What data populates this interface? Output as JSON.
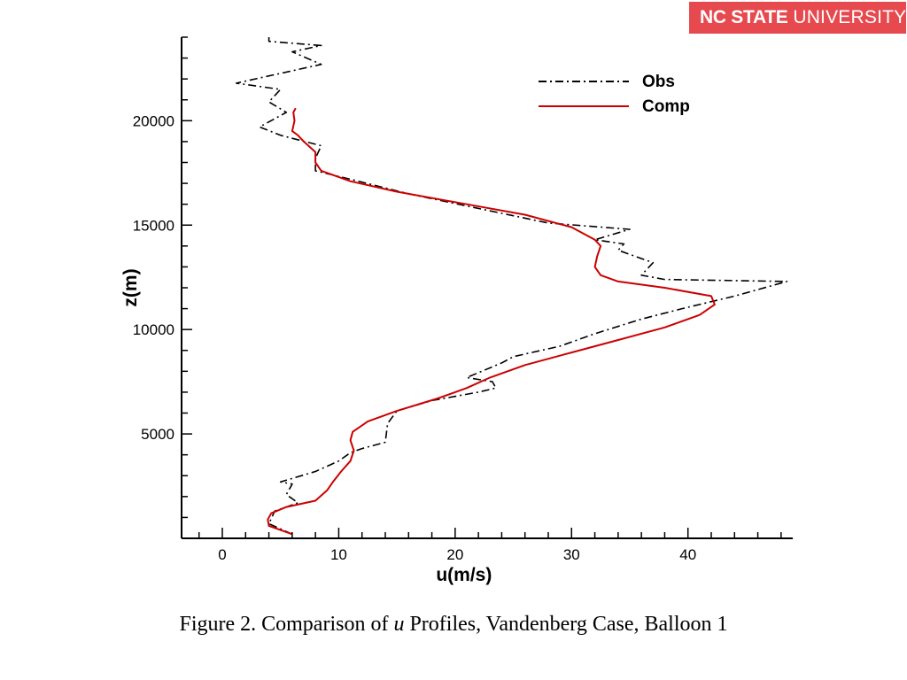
{
  "logo": {
    "bold_text": "NC STATE",
    "light_text": "UNIVERSITY",
    "color": "#e64a4f"
  },
  "caption": {
    "prefix": "Figure 2.  Comparison of ",
    "variable": "u",
    "suffix": " Profiles, Vandenberg Case, Balloon 1"
  },
  "chart_data": {
    "type": "line",
    "xlabel": "u(m/s)",
    "ylabel": "z(m)",
    "xlim": [
      -3.5,
      49
    ],
    "ylim": [
      0,
      24000
    ],
    "x_ticks": [
      0,
      10,
      20,
      30,
      40
    ],
    "y_ticks": [
      5000,
      10000,
      15000,
      20000
    ],
    "legend_position": "top-right",
    "series": [
      {
        "name": "Obs",
        "style": "dash-dot",
        "color": "#000000",
        "points": [
          [
            6,
            200
          ],
          [
            4,
            700
          ],
          [
            4.5,
            1300
          ],
          [
            6.5,
            1700
          ],
          [
            5.5,
            2100
          ],
          [
            6,
            2600
          ],
          [
            5,
            2700
          ],
          [
            8,
            3200
          ],
          [
            10,
            3700
          ],
          [
            11,
            4100
          ],
          [
            12,
            4300
          ],
          [
            14,
            4600
          ],
          [
            14.2,
            5500
          ],
          [
            15,
            6100
          ],
          [
            18,
            6600
          ],
          [
            22,
            7000
          ],
          [
            23.5,
            7200
          ],
          [
            23.2,
            7500
          ],
          [
            21,
            7700
          ],
          [
            24,
            8400
          ],
          [
            25,
            8700
          ],
          [
            29,
            9200
          ],
          [
            32,
            9800
          ],
          [
            36,
            10500
          ],
          [
            39.5,
            11000
          ],
          [
            44,
            11600
          ],
          [
            48.5,
            12300
          ],
          [
            38,
            12400
          ],
          [
            36,
            12600
          ],
          [
            37,
            13200
          ],
          [
            34,
            13800
          ],
          [
            34.5,
            14100
          ],
          [
            32,
            14300
          ],
          [
            35,
            14800
          ],
          [
            28,
            15100
          ],
          [
            22,
            15800
          ],
          [
            16,
            16500
          ],
          [
            11,
            17200
          ],
          [
            8,
            17600
          ],
          [
            8,
            18200
          ],
          [
            8.5,
            18800
          ],
          [
            5,
            19300
          ],
          [
            3.2,
            19700
          ],
          [
            5.5,
            20400
          ],
          [
            4,
            20900
          ],
          [
            5,
            21500
          ],
          [
            1.2,
            21800
          ],
          [
            8.5,
            22700
          ],
          [
            6,
            23300
          ],
          [
            8.5,
            23600
          ],
          [
            4,
            23800
          ],
          [
            4,
            24000
          ]
        ]
      },
      {
        "name": "Comp",
        "style": "solid",
        "color": "#cc0000",
        "points": [
          [
            6,
            200
          ],
          [
            5,
            400
          ],
          [
            4,
            600
          ],
          [
            3.9,
            900
          ],
          [
            4.2,
            1200
          ],
          [
            5.5,
            1500
          ],
          [
            8,
            1800
          ],
          [
            9,
            2300
          ],
          [
            9.5,
            2700
          ],
          [
            10.2,
            3200
          ],
          [
            11,
            3700
          ],
          [
            11.3,
            4200
          ],
          [
            11,
            4700
          ],
          [
            11.2,
            5100
          ],
          [
            12.5,
            5600
          ],
          [
            15,
            6100
          ],
          [
            18.5,
            6700
          ],
          [
            21,
            7200
          ],
          [
            23,
            7700
          ],
          [
            26,
            8300
          ],
          [
            30,
            8900
          ],
          [
            34,
            9500
          ],
          [
            38,
            10100
          ],
          [
            41,
            10700
          ],
          [
            42.3,
            11200
          ],
          [
            42,
            11600
          ],
          [
            38,
            12000
          ],
          [
            34,
            12300
          ],
          [
            32.5,
            12600
          ],
          [
            32,
            13000
          ],
          [
            32.2,
            13500
          ],
          [
            32.5,
            14000
          ],
          [
            32,
            14300
          ],
          [
            30,
            14900
          ],
          [
            26,
            15500
          ],
          [
            21,
            16000
          ],
          [
            15,
            16600
          ],
          [
            11,
            17100
          ],
          [
            8.5,
            17600
          ],
          [
            8,
            18000
          ],
          [
            8,
            18500
          ],
          [
            7,
            19000
          ],
          [
            6.5,
            19300
          ],
          [
            6,
            19500
          ],
          [
            6.2,
            20000
          ],
          [
            6.1,
            20400
          ],
          [
            6.3,
            20600
          ]
        ]
      }
    ]
  }
}
